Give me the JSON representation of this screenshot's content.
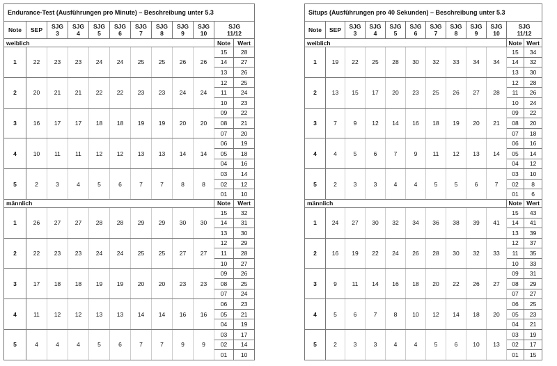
{
  "tables": [
    {
      "title": "Endurance-Test (Ausführungen pro Minute) – Beschreibung unter 5.3",
      "headers": [
        "Note",
        "SEP",
        "SJG 3",
        "SJG 4",
        "SJG 5",
        "SJG 6",
        "SJG 7",
        "SJG 8",
        "SJG 9",
        "SJG 10",
        "SJG 11/12"
      ],
      "sections": [
        {
          "label": "weiblich",
          "sub_headers": [
            "Note",
            "Wert"
          ],
          "rows": [
            {
              "note": "1",
              "values": [
                22,
                23,
                23,
                24,
                24,
                25,
                25,
                26,
                26
              ],
              "sub": [
                [
                  "15",
                  28
                ],
                [
                  "14",
                  27
                ],
                [
                  "13",
                  26
                ]
              ]
            },
            {
              "note": "2",
              "values": [
                20,
                21,
                21,
                22,
                22,
                23,
                23,
                24,
                24
              ],
              "sub": [
                [
                  "12",
                  25
                ],
                [
                  "11",
                  24
                ],
                [
                  "10",
                  23
                ]
              ]
            },
            {
              "note": "3",
              "values": [
                16,
                17,
                17,
                18,
                18,
                19,
                19,
                20,
                20
              ],
              "sub": [
                [
                  "09",
                  22
                ],
                [
                  "08",
                  21
                ],
                [
                  "07",
                  20
                ]
              ]
            },
            {
              "note": "4",
              "values": [
                10,
                11,
                11,
                12,
                12,
                13,
                13,
                14,
                14
              ],
              "sub": [
                [
                  "06",
                  19
                ],
                [
                  "05",
                  18
                ],
                [
                  "04",
                  16
                ]
              ]
            },
            {
              "note": "5",
              "values": [
                2,
                3,
                4,
                5,
                6,
                7,
                7,
                8,
                8
              ],
              "sub": [
                [
                  "03",
                  14
                ],
                [
                  "02",
                  12
                ],
                [
                  "01",
                  10
                ]
              ]
            }
          ]
        },
        {
          "label": "männlich",
          "sub_headers": [
            "Note",
            "Wert"
          ],
          "rows": [
            {
              "note": "1",
              "values": [
                26,
                27,
                27,
                28,
                28,
                29,
                29,
                30,
                30
              ],
              "sub": [
                [
                  "15",
                  32
                ],
                [
                  "14",
                  31
                ],
                [
                  "13",
                  30
                ]
              ]
            },
            {
              "note": "2",
              "values": [
                22,
                23,
                23,
                24,
                24,
                25,
                25,
                27,
                27
              ],
              "sub": [
                [
                  "12",
                  29
                ],
                [
                  "11",
                  28
                ],
                [
                  "10",
                  27
                ]
              ]
            },
            {
              "note": "3",
              "values": [
                17,
                18,
                18,
                19,
                19,
                20,
                20,
                23,
                23
              ],
              "sub": [
                [
                  "09",
                  26
                ],
                [
                  "08",
                  25
                ],
                [
                  "07",
                  24
                ]
              ]
            },
            {
              "note": "4",
              "values": [
                11,
                12,
                12,
                13,
                13,
                14,
                14,
                16,
                16
              ],
              "sub": [
                [
                  "06",
                  23
                ],
                [
                  "05",
                  21
                ],
                [
                  "04",
                  19
                ]
              ]
            },
            {
              "note": "5",
              "values": [
                4,
                4,
                4,
                5,
                6,
                7,
                7,
                9,
                9
              ],
              "sub": [
                [
                  "03",
                  17
                ],
                [
                  "02",
                  14
                ],
                [
                  "01",
                  10
                ]
              ]
            }
          ]
        }
      ]
    },
    {
      "title": "Situps (Ausführungen pro 40 Sekunden) – Beschreibung unter 5.3",
      "headers": [
        "Note",
        "SEP",
        "SJG 3",
        "SJG 4",
        "SJG 5",
        "SJG 6",
        "SJG 7",
        "SJG 8",
        "SJG 9",
        "SJG 10",
        "SJG 11/12"
      ],
      "sections": [
        {
          "label": "weiblich",
          "sub_headers": [
            "Note",
            "Wert"
          ],
          "rows": [
            {
              "note": "1",
              "values": [
                19,
                22,
                25,
                28,
                30,
                32,
                33,
                34,
                34
              ],
              "sub": [
                [
                  "15",
                  34
                ],
                [
                  "14",
                  32
                ],
                [
                  "13",
                  30
                ]
              ]
            },
            {
              "note": "2",
              "values": [
                13,
                15,
                17,
                20,
                23,
                25,
                26,
                27,
                28
              ],
              "sub": [
                [
                  "12",
                  28
                ],
                [
                  "11",
                  26
                ],
                [
                  "10",
                  24
                ]
              ]
            },
            {
              "note": "3",
              "values": [
                7,
                9,
                12,
                14,
                16,
                18,
                19,
                20,
                21
              ],
              "sub": [
                [
                  "09",
                  22
                ],
                [
                  "08",
                  20
                ],
                [
                  "07",
                  18
                ]
              ]
            },
            {
              "note": "4",
              "values": [
                4,
                5,
                6,
                7,
                9,
                11,
                12,
                13,
                14
              ],
              "sub": [
                [
                  "06",
                  16
                ],
                [
                  "05",
                  14
                ],
                [
                  "04",
                  12
                ]
              ]
            },
            {
              "note": "5",
              "values": [
                2,
                3,
                3,
                4,
                4,
                5,
                5,
                6,
                7
              ],
              "sub": [
                [
                  "03",
                  10
                ],
                [
                  "02",
                  8
                ],
                [
                  "01",
                  6
                ]
              ]
            }
          ]
        },
        {
          "label": "männlich",
          "sub_headers": [
            "Note",
            "Wert"
          ],
          "rows": [
            {
              "note": "1",
              "values": [
                24,
                27,
                30,
                32,
                34,
                36,
                38,
                39,
                41
              ],
              "sub": [
                [
                  "15",
                  43
                ],
                [
                  "14",
                  41
                ],
                [
                  "13",
                  39
                ]
              ]
            },
            {
              "note": "2",
              "values": [
                16,
                19,
                22,
                24,
                26,
                28,
                30,
                32,
                33
              ],
              "sub": [
                [
                  "12",
                  37
                ],
                [
                  "11",
                  35
                ],
                [
                  "10",
                  33
                ]
              ]
            },
            {
              "note": "3",
              "values": [
                9,
                11,
                14,
                16,
                18,
                20,
                22,
                26,
                27
              ],
              "sub": [
                [
                  "09",
                  31
                ],
                [
                  "08",
                  29
                ],
                [
                  "07",
                  27
                ]
              ]
            },
            {
              "note": "4",
              "values": [
                5,
                6,
                7,
                8,
                10,
                12,
                14,
                18,
                20
              ],
              "sub": [
                [
                  "06",
                  25
                ],
                [
                  "05",
                  23
                ],
                [
                  "04",
                  21
                ]
              ]
            },
            {
              "note": "5",
              "values": [
                2,
                3,
                3,
                4,
                4,
                5,
                6,
                10,
                13
              ],
              "sub": [
                [
                  "03",
                  19
                ],
                [
                  "02",
                  17
                ],
                [
                  "01",
                  15
                ]
              ]
            }
          ]
        }
      ]
    }
  ]
}
